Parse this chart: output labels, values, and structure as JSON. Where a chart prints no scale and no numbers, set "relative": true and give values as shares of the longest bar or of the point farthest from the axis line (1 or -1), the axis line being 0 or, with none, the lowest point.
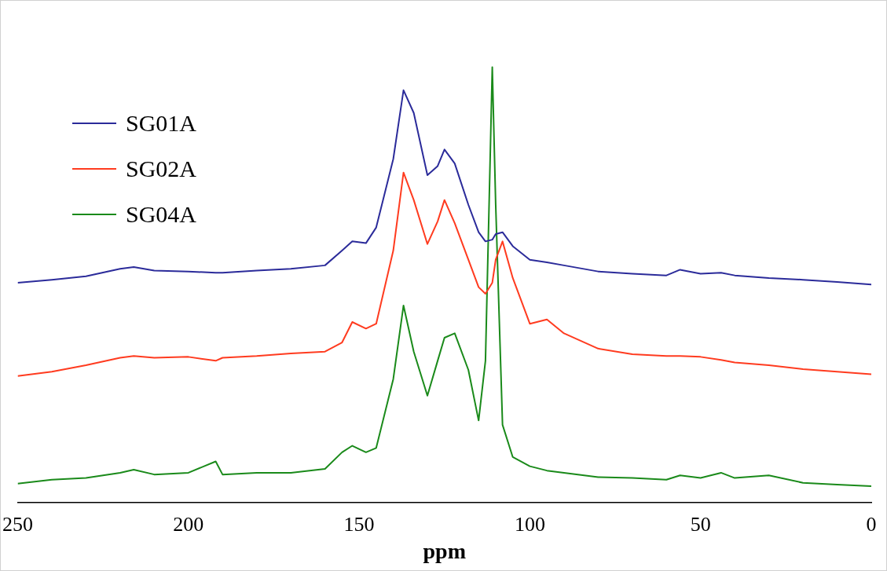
{
  "chart_data": {
    "type": "line",
    "xlabel": "ppm",
    "relative": true,
    "xlim": [
      250,
      0
    ],
    "xticks": [
      250,
      200,
      150,
      100,
      50,
      0
    ],
    "grid": false,
    "legend": "top left",
    "marker": "none",
    "line_style": "solid",
    "x": [
      250,
      240,
      230,
      220,
      216,
      210,
      200,
      192,
      190,
      180,
      170,
      160,
      155,
      152,
      148,
      145,
      140,
      137,
      134,
      130,
      127,
      125,
      122,
      118,
      115,
      113,
      111,
      110,
      108,
      105,
      100,
      95,
      90,
      80,
      70,
      60,
      56,
      50,
      44,
      40,
      30,
      20,
      10,
      0
    ],
    "series": [
      {
        "name": "SG01A",
        "color": "#2b2b9a",
        "values": [
          0.505,
          0.512,
          0.52,
          0.537,
          0.541,
          0.533,
          0.531,
          0.528,
          0.528,
          0.533,
          0.537,
          0.545,
          0.579,
          0.6,
          0.596,
          0.632,
          0.789,
          0.947,
          0.895,
          0.752,
          0.773,
          0.811,
          0.779,
          0.684,
          0.621,
          0.6,
          0.604,
          0.617,
          0.621,
          0.589,
          0.558,
          0.552,
          0.545,
          0.531,
          0.526,
          0.522,
          0.535,
          0.526,
          0.528,
          0.522,
          0.516,
          0.512,
          0.507,
          0.501
        ]
      },
      {
        "name": "SG02A",
        "color": "#ff3b1f",
        "values": [
          0.291,
          0.301,
          0.316,
          0.333,
          0.337,
          0.333,
          0.335,
          0.326,
          0.333,
          0.337,
          0.343,
          0.347,
          0.368,
          0.415,
          0.4,
          0.411,
          0.579,
          0.758,
          0.695,
          0.594,
          0.646,
          0.695,
          0.642,
          0.558,
          0.495,
          0.48,
          0.505,
          0.558,
          0.6,
          0.516,
          0.411,
          0.421,
          0.389,
          0.354,
          0.341,
          0.337,
          0.337,
          0.335,
          0.328,
          0.322,
          0.316,
          0.307,
          0.301,
          0.295
        ]
      },
      {
        "name": "SG04A",
        "color": "#1a8a1a",
        "values": [
          0.044,
          0.053,
          0.057,
          0.069,
          0.076,
          0.065,
          0.069,
          0.095,
          0.065,
          0.069,
          0.069,
          0.078,
          0.116,
          0.131,
          0.116,
          0.126,
          0.284,
          0.453,
          0.347,
          0.246,
          0.326,
          0.379,
          0.389,
          0.305,
          0.189,
          0.326,
          1,
          0.684,
          0.179,
          0.105,
          0.084,
          0.074,
          0.069,
          0.059,
          0.057,
          0.053,
          0.063,
          0.057,
          0.069,
          0.057,
          0.063,
          0.046,
          0.042,
          0.038
        ]
      }
    ]
  }
}
